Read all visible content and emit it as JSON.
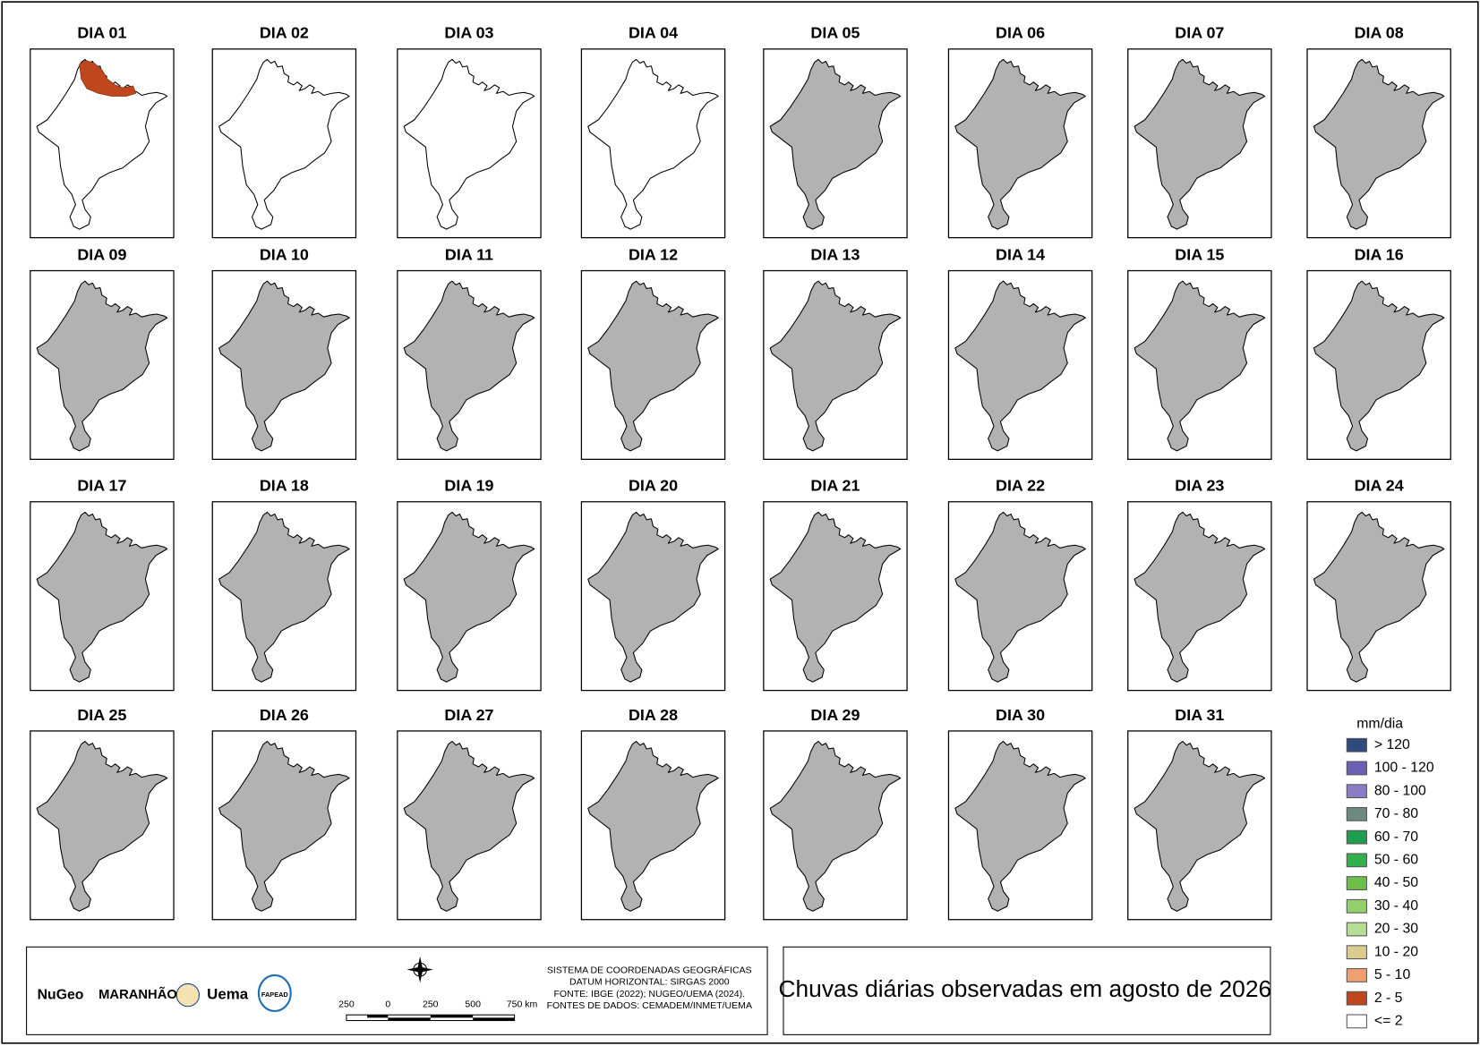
{
  "panels": [
    {
      "label": "DIA 01",
      "fill": "#ffffff",
      "overlay": "#c0461e"
    },
    {
      "label": "DIA 02",
      "fill": "#ffffff"
    },
    {
      "label": "DIA 03",
      "fill": "#ffffff"
    },
    {
      "label": "DIA 04",
      "fill": "#ffffff"
    },
    {
      "label": "DIA 05",
      "fill": "#b2b2b2"
    },
    {
      "label": "DIA 06",
      "fill": "#b2b2b2"
    },
    {
      "label": "DIA 07",
      "fill": "#b2b2b2"
    },
    {
      "label": "DIA 08",
      "fill": "#b2b2b2"
    },
    {
      "label": "DIA 09",
      "fill": "#b2b2b2"
    },
    {
      "label": "DIA 10",
      "fill": "#b2b2b2"
    },
    {
      "label": "DIA 11",
      "fill": "#b2b2b2"
    },
    {
      "label": "DIA 12",
      "fill": "#b2b2b2"
    },
    {
      "label": "DIA 13",
      "fill": "#b2b2b2"
    },
    {
      "label": "DIA 14",
      "fill": "#b2b2b2"
    },
    {
      "label": "DIA 15",
      "fill": "#b2b2b2"
    },
    {
      "label": "DIA 16",
      "fill": "#b2b2b2"
    },
    {
      "label": "DIA 17",
      "fill": "#b2b2b2"
    },
    {
      "label": "DIA 18",
      "fill": "#b2b2b2"
    },
    {
      "label": "DIA 19",
      "fill": "#b2b2b2"
    },
    {
      "label": "DIA 20",
      "fill": "#b2b2b2"
    },
    {
      "label": "DIA 21",
      "fill": "#b2b2b2"
    },
    {
      "label": "DIA 22",
      "fill": "#b2b2b2"
    },
    {
      "label": "DIA 23",
      "fill": "#b2b2b2"
    },
    {
      "label": "DIA 24",
      "fill": "#b2b2b2"
    },
    {
      "label": "DIA 25",
      "fill": "#b2b2b2"
    },
    {
      "label": "DIA 26",
      "fill": "#b2b2b2"
    },
    {
      "label": "DIA 27",
      "fill": "#b2b2b2"
    },
    {
      "label": "DIA 28",
      "fill": "#b2b2b2"
    },
    {
      "label": "DIA 29",
      "fill": "#b2b2b2"
    },
    {
      "label": "DIA 30",
      "fill": "#b2b2b2"
    },
    {
      "label": "DIA 31",
      "fill": "#b2b2b2"
    }
  ],
  "legend": {
    "title": "mm/dia",
    "items": [
      {
        "label": "> 120",
        "color": "#2f4a7d"
      },
      {
        "label": "100 - 120",
        "color": "#6b5fb5"
      },
      {
        "label": "80 - 100",
        "color": "#8a7cc7"
      },
      {
        "label": "70 - 80",
        "color": "#6c8a80"
      },
      {
        "label": "60 - 70",
        "color": "#1f9e4f"
      },
      {
        "label": "50 - 60",
        "color": "#33b04e"
      },
      {
        "label": "40 - 50",
        "color": "#6cc04a"
      },
      {
        "label": "30 - 40",
        "color": "#93cf6b"
      },
      {
        "label": "20 - 30",
        "color": "#b5dd93"
      },
      {
        "label": "10 - 20",
        "color": "#dccb8f"
      },
      {
        "label": "5 - 10",
        "color": "#f0a070"
      },
      {
        "label": "2 - 5",
        "color": "#c0461e"
      },
      {
        "label": "<= 2",
        "color": "#ffffff"
      }
    ]
  },
  "title": "Chuvas diárias observadas em agosto de 2026",
  "credits": [
    "SISTEMA DE COORDENADAS GEOGRÁFICAS",
    "DATUM HORIZONTAL: SIRGAS 2000",
    "FONTE: IBGE (2022); NUGEO/UEMA (2024).",
    "FONTES DE DADOS: CEMADEM/INMET/UEMA"
  ],
  "scale_labels": [
    "250",
    "0",
    "250",
    "500",
    "750 km"
  ],
  "logos": [
    "NuGeo",
    "MARANHÃO",
    "Uema",
    "FAPEAD"
  ]
}
